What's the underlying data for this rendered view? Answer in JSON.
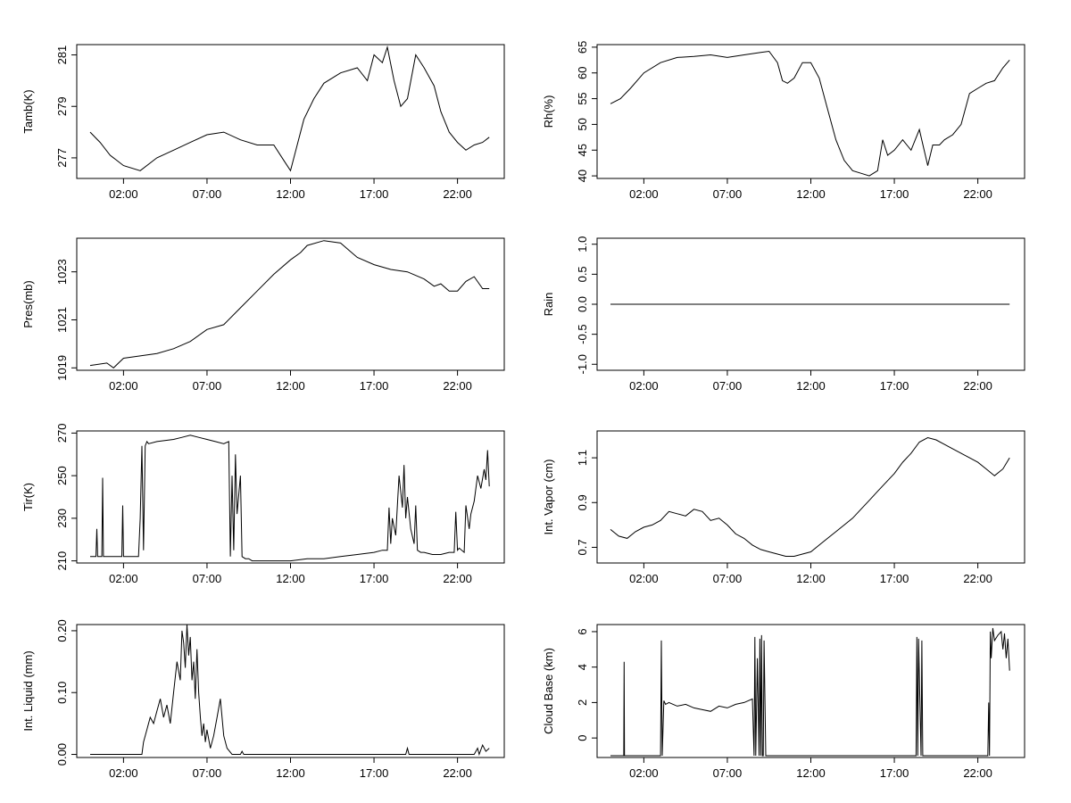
{
  "figure": {
    "background": "#ffffff",
    "line_color": "#000000"
  },
  "chart_data": [
    {
      "id": "tamb",
      "type": "line",
      "ylabel": "Tamb(K)",
      "xticks": [
        "02:00",
        "07:00",
        "12:00",
        "17:00",
        "22:00"
      ],
      "yticks": [
        "277",
        "279",
        "281"
      ],
      "ytick_values": [
        277,
        279,
        281
      ],
      "ylim": [
        276.2,
        281.4
      ],
      "series": [
        {
          "x": [
            0.0,
            0.6,
            1.2,
            2.0,
            3.0,
            4.0,
            5.0,
            6.0,
            7.0,
            8.0,
            9.0,
            10.0,
            11.0,
            11.6,
            12.0,
            12.4,
            12.8,
            13.4,
            14.0,
            15.0,
            16.0,
            16.6,
            17.0,
            17.5,
            17.8,
            18.2,
            18.6,
            19.0,
            19.5,
            20.0,
            20.6,
            21.0,
            21.5,
            22.0,
            22.5,
            23.0,
            23.5,
            23.9
          ],
          "values": [
            278.0,
            277.6,
            277.1,
            276.7,
            276.5,
            277.0,
            277.3,
            277.6,
            277.9,
            278.0,
            277.7,
            277.5,
            277.5,
            276.9,
            276.5,
            277.5,
            278.5,
            279.3,
            279.9,
            280.3,
            280.5,
            280.0,
            281.0,
            280.7,
            281.3,
            280.0,
            279.0,
            279.3,
            281.0,
            280.5,
            279.8,
            278.8,
            278.0,
            277.6,
            277.3,
            277.5,
            277.6,
            277.8
          ]
        }
      ]
    },
    {
      "id": "rh",
      "type": "line",
      "ylabel": "Rh(%)",
      "xticks": [
        "02:00",
        "07:00",
        "12:00",
        "17:00",
        "22:00"
      ],
      "yticks": [
        "40",
        "45",
        "50",
        "55",
        "60",
        "65"
      ],
      "ytick_values": [
        40,
        45,
        50,
        55,
        60,
        65
      ],
      "ylim": [
        39.5,
        65.5
      ],
      "series": [
        {
          "x": [
            0.0,
            0.6,
            1.2,
            2.0,
            3.0,
            4.0,
            5.0,
            6.0,
            7.0,
            8.0,
            9.0,
            9.5,
            10.0,
            10.3,
            10.6,
            11.0,
            11.5,
            12.0,
            12.5,
            13.0,
            13.5,
            14.0,
            14.5,
            15.0,
            15.5,
            16.0,
            16.3,
            16.6,
            17.0,
            17.5,
            18.0,
            18.5,
            19.0,
            19.3,
            19.7,
            20.0,
            20.5,
            21.0,
            21.5,
            22.0,
            22.5,
            23.0,
            23.5,
            23.9
          ],
          "values": [
            54,
            55,
            57,
            60,
            62,
            63,
            63.2,
            63.5,
            63,
            63.5,
            64,
            64.2,
            62,
            58.5,
            58,
            59,
            62,
            62,
            59,
            53,
            47,
            43,
            41,
            40.5,
            40,
            41,
            47,
            44,
            45,
            47,
            45,
            49,
            42,
            46,
            46,
            47,
            48,
            50,
            56,
            57,
            58,
            58.5,
            61,
            62.5
          ]
        }
      ]
    },
    {
      "id": "pres",
      "type": "line",
      "ylabel": "Pres(mb)",
      "xticks": [
        "02:00",
        "07:00",
        "12:00",
        "17:00",
        "22:00"
      ],
      "yticks": [
        "1019",
        "1021",
        "1023"
      ],
      "ytick_values": [
        1019,
        1021,
        1023
      ],
      "ylim": [
        1018.9,
        1024.4
      ],
      "series": [
        {
          "x": [
            0.0,
            1.0,
            1.4,
            2.0,
            3.0,
            4.0,
            5.0,
            6.0,
            7.0,
            8.0,
            9.0,
            10.0,
            11.0,
            12.0,
            12.6,
            13.0,
            14.0,
            15.0,
            15.5,
            16.0,
            17.0,
            18.0,
            19.0,
            20.0,
            20.6,
            21.0,
            21.5,
            22.0,
            22.5,
            23.0,
            23.5,
            23.9
          ],
          "values": [
            1019.1,
            1019.2,
            1019.0,
            1019.4,
            1019.5,
            1019.6,
            1019.8,
            1020.1,
            1020.6,
            1020.8,
            1021.5,
            1022.2,
            1022.9,
            1023.5,
            1023.8,
            1024.1,
            1024.3,
            1024.2,
            1023.9,
            1023.6,
            1023.3,
            1023.1,
            1023.0,
            1022.7,
            1022.4,
            1022.5,
            1022.2,
            1022.2,
            1022.6,
            1022.8,
            1022.3,
            1022.3
          ]
        }
      ]
    },
    {
      "id": "rain",
      "type": "line",
      "ylabel": "Rain",
      "xticks": [
        "02:00",
        "07:00",
        "12:00",
        "17:00",
        "22:00"
      ],
      "yticks": [
        "-1.0",
        "-0.5",
        "0.0",
        "0.5",
        "1.0"
      ],
      "ytick_values": [
        -1,
        -0.5,
        0,
        0.5,
        1
      ],
      "ylim": [
        -1.1,
        1.1
      ],
      "series": [
        {
          "x": [
            0.0,
            23.9
          ],
          "values": [
            0,
            0
          ]
        }
      ]
    },
    {
      "id": "tir",
      "type": "line",
      "ylabel": "Tir(K)",
      "xticks": [
        "02:00",
        "07:00",
        "12:00",
        "17:00",
        "22:00"
      ],
      "yticks": [
        "210",
        "230",
        "250",
        "270"
      ],
      "ytick_values": [
        210,
        230,
        250,
        270
      ],
      "ylim": [
        209,
        271
      ],
      "series": [
        {
          "x": [
            0.0,
            0.35,
            0.4,
            0.45,
            0.7,
            0.75,
            0.8,
            1.2,
            1.9,
            1.95,
            2.0,
            2.9,
            3.0,
            3.1,
            3.2,
            3.3,
            3.4,
            3.5,
            4.0,
            5.0,
            5.5,
            6.0,
            6.5,
            7.0,
            7.5,
            8.0,
            8.3,
            8.4,
            8.5,
            8.6,
            8.7,
            8.8,
            9.0,
            9.1,
            9.3,
            9.5,
            9.7,
            10.0,
            11.0,
            12.0,
            13.0,
            14.0,
            15.0,
            16.0,
            17.0,
            17.5,
            17.8,
            17.9,
            18.0,
            18.1,
            18.3,
            18.5,
            18.7,
            18.8,
            18.9,
            19.0,
            19.2,
            19.4,
            19.5,
            19.6,
            19.8,
            20.0,
            20.5,
            21.0,
            21.5,
            21.8,
            21.9,
            22.0,
            22.1,
            22.4,
            22.5,
            22.7,
            22.8,
            23.0,
            23.2,
            23.4,
            23.6,
            23.7,
            23.8,
            23.9
          ],
          "values": [
            212,
            212,
            225,
            212,
            212,
            249,
            212,
            212,
            212,
            236,
            212,
            212,
            230,
            264,
            215,
            264,
            266,
            265,
            266,
            267,
            268,
            269,
            268,
            267,
            266,
            265,
            266,
            212,
            250,
            215,
            260,
            232,
            250,
            212,
            211,
            211,
            210,
            210,
            210,
            210,
            211,
            211,
            212,
            213,
            214,
            215,
            215,
            235,
            218,
            230,
            222,
            250,
            235,
            255,
            230,
            240,
            225,
            218,
            236,
            215,
            214,
            214,
            213,
            213,
            214,
            214,
            233,
            215,
            216,
            214,
            236,
            225,
            232,
            238,
            250,
            244,
            253,
            248,
            262,
            245
          ]
        }
      ]
    },
    {
      "id": "vapor",
      "type": "line",
      "ylabel": "Int. Vapor (cm)",
      "xticks": [
        "02:00",
        "07:00",
        "12:00",
        "17:00",
        "22:00"
      ],
      "yticks": [
        "0.7",
        "0.9",
        "1.1"
      ],
      "ytick_values": [
        0.7,
        0.9,
        1.1
      ],
      "ylim": [
        0.63,
        1.22
      ],
      "series": [
        {
          "x": [
            0.0,
            0.5,
            1.0,
            1.5,
            2.0,
            2.5,
            3.0,
            3.5,
            4.0,
            4.5,
            5.0,
            5.5,
            6.0,
            6.5,
            7.0,
            7.5,
            8.0,
            8.5,
            9.0,
            9.5,
            10.0,
            10.5,
            11.0,
            11.5,
            12.0,
            12.5,
            13.0,
            13.5,
            14.0,
            14.5,
            15.0,
            15.5,
            16.0,
            16.5,
            17.0,
            17.5,
            18.0,
            18.5,
            19.0,
            19.5,
            20.0,
            20.5,
            21.0,
            21.5,
            22.0,
            22.5,
            23.0,
            23.5,
            23.9
          ],
          "values": [
            0.78,
            0.75,
            0.74,
            0.77,
            0.79,
            0.8,
            0.82,
            0.86,
            0.85,
            0.84,
            0.87,
            0.86,
            0.82,
            0.83,
            0.8,
            0.76,
            0.74,
            0.71,
            0.69,
            0.68,
            0.67,
            0.66,
            0.66,
            0.67,
            0.68,
            0.71,
            0.74,
            0.77,
            0.8,
            0.83,
            0.87,
            0.91,
            0.95,
            0.99,
            1.03,
            1.08,
            1.12,
            1.17,
            1.19,
            1.18,
            1.16,
            1.14,
            1.12,
            1.1,
            1.08,
            1.05,
            1.02,
            1.05,
            1.1
          ]
        }
      ]
    },
    {
      "id": "liquid",
      "type": "line",
      "ylabel": "Int. Liquid (mm)",
      "xticks": [
        "02:00",
        "07:00",
        "12:00",
        "17:00",
        "22:00"
      ],
      "yticks": [
        "0.00",
        "0.10",
        "0.20"
      ],
      "ytick_values": [
        0,
        0.1,
        0.2
      ],
      "ylim": [
        -0.005,
        0.21
      ],
      "series": [
        {
          "x": [
            0.0,
            3.1,
            3.2,
            3.4,
            3.6,
            3.8,
            4.0,
            4.2,
            4.4,
            4.6,
            4.8,
            5.0,
            5.2,
            5.4,
            5.5,
            5.6,
            5.7,
            5.8,
            5.9,
            6.0,
            6.1,
            6.2,
            6.3,
            6.4,
            6.5,
            6.6,
            6.7,
            6.8,
            6.9,
            7.0,
            7.2,
            7.4,
            7.6,
            7.8,
            8.0,
            8.2,
            8.5,
            8.7,
            8.8,
            9.0,
            9.1,
            9.2,
            9.4,
            18.9,
            19.0,
            19.1,
            23.0,
            23.2,
            23.3,
            23.5,
            23.7,
            23.9
          ],
          "values": [
            0,
            0,
            0.02,
            0.04,
            0.06,
            0.05,
            0.07,
            0.09,
            0.06,
            0.08,
            0.05,
            0.1,
            0.15,
            0.12,
            0.2,
            0.18,
            0.14,
            0.21,
            0.16,
            0.19,
            0.12,
            0.15,
            0.09,
            0.17,
            0.1,
            0.06,
            0.03,
            0.05,
            0.02,
            0.04,
            0.01,
            0.03,
            0.06,
            0.09,
            0.03,
            0.01,
            0,
            0,
            0,
            0,
            0.005,
            0,
            0,
            0,
            0.01,
            0,
            0,
            0.01,
            0,
            0.015,
            0.005,
            0.01
          ]
        }
      ]
    },
    {
      "id": "cloudbase",
      "type": "line",
      "ylabel": "Cloud Base (km)",
      "xticks": [
        "02:00",
        "07:00",
        "12:00",
        "17:00",
        "22:00"
      ],
      "yticks": [
        "0",
        "2",
        "4",
        "6"
      ],
      "ytick_values": [
        0,
        2,
        4,
        6
      ],
      "ylim": [
        -1.1,
        6.4
      ],
      "series": [
        {
          "x": [
            0.0,
            0.8,
            0.82,
            0.84,
            3.0,
            3.05,
            3.1,
            3.2,
            3.3,
            3.5,
            4.0,
            4.5,
            5.0,
            5.5,
            6.0,
            6.5,
            7.0,
            7.5,
            8.0,
            8.5,
            8.6,
            8.65,
            8.7,
            8.8,
            8.9,
            8.95,
            9.0,
            9.05,
            9.1,
            9.15,
            9.2,
            9.3,
            9.35,
            18.3,
            18.35,
            18.4,
            18.45,
            18.6,
            18.65,
            18.7,
            18.75,
            22.5,
            22.6,
            22.65,
            22.7,
            22.75,
            22.8,
            22.9,
            23.0,
            23.2,
            23.4,
            23.5,
            23.6,
            23.7,
            23.8,
            23.9
          ],
          "values": [
            -1,
            -1,
            4.3,
            -1,
            -1,
            5.5,
            -1,
            2.1,
            1.9,
            2.0,
            1.8,
            1.9,
            1.7,
            1.6,
            1.5,
            1.8,
            1.7,
            1.9,
            2.0,
            2.2,
            -1,
            5.7,
            -1,
            4.5,
            -1,
            5.6,
            -1,
            5.8,
            -1,
            -1,
            5.5,
            -1,
            -1,
            -1,
            5.7,
            -1,
            5.6,
            -1,
            5.5,
            -1,
            -1,
            -1,
            -1,
            2.0,
            -1,
            6.0,
            4.5,
            6.2,
            5.5,
            5.8,
            6.0,
            5.0,
            5.9,
            4.5,
            5.6,
            3.8
          ]
        }
      ]
    }
  ]
}
